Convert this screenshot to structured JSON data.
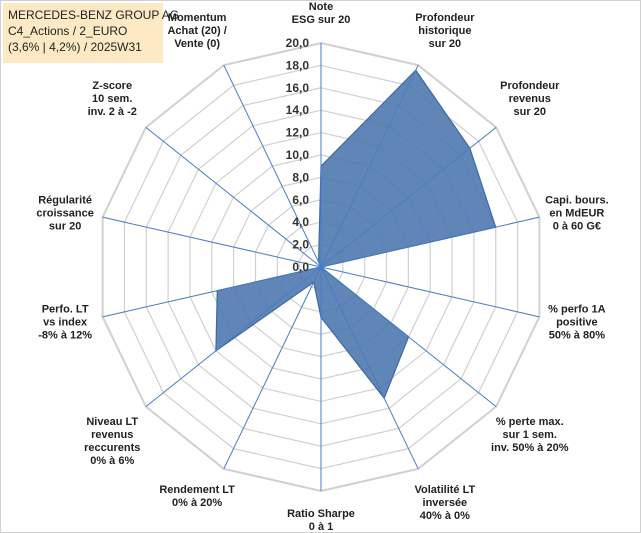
{
  "title_box": {
    "line1": "MERCEDES-BENZ GROUP AG",
    "line2": "C4_Actions / 2_EURO",
    "line3": "(3,6% | 4,2%) / 2025W31"
  },
  "chart_data": {
    "type": "radar",
    "rmax": 20,
    "ticks": [
      "0,0",
      "2,0",
      "4,0",
      "6,0",
      "8,0",
      "10,0",
      "12,0",
      "14,0",
      "16,0",
      "18,0",
      "20,0"
    ],
    "axes": [
      {
        "label": [
          "Note",
          "ESG sur 20"
        ],
        "value": 9.0
      },
      {
        "label": [
          "Profondeur",
          "historique",
          "sur 20"
        ],
        "value": 19.5
      },
      {
        "label": [
          "Profondeur",
          "revenus",
          "sur 20"
        ],
        "value": 17.0
      },
      {
        "label": [
          "Capi. bours.",
          "en MdEUR",
          "0 à 60 G€"
        ],
        "value": 16.0
      },
      {
        "label": [
          "% perfo 1A",
          "positive",
          "50% à 80%"
        ],
        "value": 0.0
      },
      {
        "label": [
          "% perte max.",
          "sur 1 sem.",
          "inv. 50% à 20%"
        ],
        "value": 10.0
      },
      {
        "label": [
          "Volatilité LT",
          "inversée",
          "40% à 0%"
        ],
        "value": 13.0
      },
      {
        "label": [
          "Ratio Sharpe",
          "0 à 1"
        ],
        "value": 4.5
      },
      {
        "label": [
          "Rendement LT",
          "0% à 20%"
        ],
        "value": 1.5
      },
      {
        "label": [
          "Niveau LT",
          "revenus",
          "reccurents",
          "0% à 6%"
        ],
        "value": 12.0
      },
      {
        "label": [
          "Perfo. LT",
          "vs index",
          "-8% à 12%"
        ],
        "value": 9.5
      },
      {
        "label": [
          "Régularité",
          "croissance",
          "sur 20"
        ],
        "value": 0.0
      },
      {
        "label": [
          "Z-score",
          "10 sem.",
          "inv. 2 à -2"
        ],
        "value": 0.0
      },
      {
        "label": [
          "Momentum",
          "Achat (20) /",
          "Vente (0)"
        ],
        "value": 0.5
      }
    ],
    "colors": {
      "fill": "#4a75ad",
      "stroke": "#3d6aa3",
      "axis": "#4a7cc4",
      "grid": "#d0d0d0"
    }
  }
}
